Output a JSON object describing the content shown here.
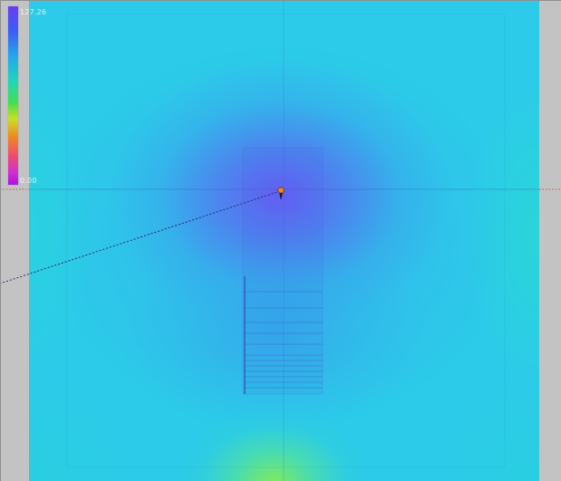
{
  "scale": {
    "max_label": "127.26",
    "min_label": "0.00",
    "colors": [
      "#6a3cf0",
      "#3a5ef5",
      "#22a8f0",
      "#1fd6b8",
      "#40e050",
      "#c8e020",
      "#f08a20",
      "#f04a70",
      "#d030d0",
      "#b010e0"
    ]
  },
  "colors": {
    "field_base": "#2ccbe9",
    "outside": "#c3c3c3",
    "axis_dots": "#c85050",
    "sight_line": "#2a2a6a",
    "source_marker": "#f08a20"
  },
  "icons": {
    "source": "source-marker-icon",
    "receiver": "receiver-icon"
  }
}
